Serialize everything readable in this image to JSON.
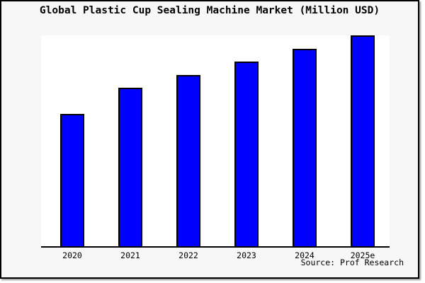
{
  "chart_data": {
    "type": "bar",
    "title": "Global Plastic Cup Sealing Machine Market (Million USD)",
    "categories": [
      "2020",
      "2021",
      "2022",
      "2023",
      "2024",
      "2025e"
    ],
    "values": [
      62.7,
      75.0,
      81.3,
      87.7,
      93.7,
      100.0
    ],
    "values_note": "Relative bar heights estimated from pixels (tallest bar 2025e = 100); no numeric y-axis is shown in the chart",
    "xlabel": "",
    "ylabel": "",
    "ylim": [
      0,
      100
    ],
    "grid": false,
    "legend": false,
    "bar_color": "#0000ff",
    "bar_border_color": "#000000",
    "plot_background": "#ffffff",
    "figure_background": "#f7f7f7",
    "axis_color": "#000000"
  },
  "footer": {
    "source_note": "Source: Prof Research"
  }
}
